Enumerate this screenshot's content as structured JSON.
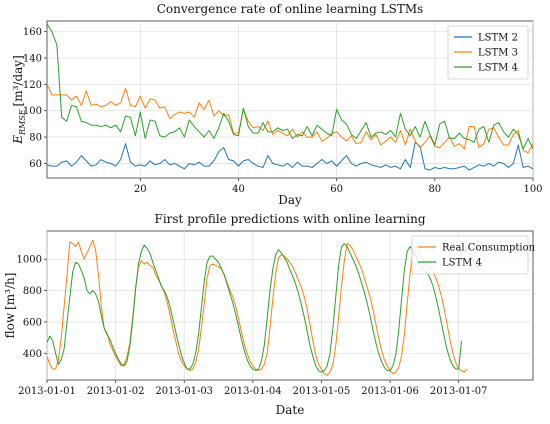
{
  "chart_data": [
    {
      "type": "line",
      "title": "Convergence rate of online learning LSTMs",
      "xlabel": "Day",
      "ylabel": "E_RMSE [m³/day]",
      "ylabel_main": "E",
      "ylabel_sub": "RMSE",
      "ylabel_unit": "[m³/day]",
      "xlim": [
        1,
        100
      ],
      "ylim": [
        49,
        168
      ],
      "xticks": [
        "20",
        "40",
        "60",
        "80",
        "100"
      ],
      "xtick_values": [
        20,
        40,
        60,
        80,
        100
      ],
      "yticks": [
        "60",
        "80",
        "100",
        "120",
        "140",
        "160"
      ],
      "ytick_values": [
        60,
        80,
        100,
        120,
        140,
        160
      ],
      "grid": true,
      "legend_position": "top-right",
      "x_start": 1,
      "series": [
        {
          "name": "LSTM 2",
          "color": "#1f77b4",
          "values": [
            59,
            58,
            58,
            61,
            62,
            58,
            61,
            66,
            62,
            58,
            59,
            63,
            61,
            60,
            58,
            63,
            75,
            61,
            58,
            59,
            58,
            62,
            59,
            60,
            63,
            59,
            60,
            58,
            56,
            60,
            59,
            61,
            58,
            58,
            62,
            69,
            72,
            63,
            62,
            58,
            62,
            63,
            60,
            58,
            57,
            66,
            60,
            59,
            58,
            60,
            57,
            61,
            58,
            58,
            57,
            60,
            63,
            60,
            62,
            58,
            62,
            66,
            60,
            58,
            60,
            61,
            59,
            58,
            57,
            59,
            57,
            58,
            56,
            63,
            57,
            76,
            73,
            56,
            55,
            57,
            56,
            57,
            56,
            56,
            57,
            58,
            55,
            57,
            59,
            58,
            60,
            58,
            61,
            60,
            57,
            60,
            74,
            57,
            58,
            56
          ]
        },
        {
          "name": "LSTM 3",
          "color": "#ff7f0e",
          "values": [
            120,
            112,
            112,
            112,
            112,
            108,
            111,
            104,
            115,
            104,
            105,
            103,
            104,
            107,
            104,
            106,
            117,
            104,
            103,
            111,
            102,
            109,
            108,
            102,
            103,
            94,
            97,
            99,
            98,
            99,
            95,
            106,
            101,
            108,
            96,
            100,
            96,
            97,
            83,
            83,
            101,
            92,
            87,
            88,
            85,
            92,
            82,
            85,
            83,
            81,
            86,
            80,
            84,
            80,
            80,
            84,
            77,
            79,
            83,
            84,
            80,
            77,
            81,
            75,
            76,
            84,
            78,
            82,
            74,
            77,
            80,
            76,
            85,
            74,
            86,
            77,
            72,
            76,
            81,
            73,
            72,
            76,
            80,
            73,
            75,
            71,
            88,
            88,
            72,
            75,
            86,
            87,
            80,
            74,
            74,
            82,
            85,
            70,
            68,
            75
          ]
        },
        {
          "name": "LSTM 4",
          "color": "#2ca02c",
          "values": [
            166,
            160,
            150,
            95,
            92,
            104,
            103,
            92,
            91,
            89,
            89,
            88,
            89,
            87,
            89,
            84,
            96,
            95,
            81,
            99,
            79,
            93,
            92,
            81,
            80,
            83,
            84,
            87,
            80,
            93,
            88,
            84,
            80,
            85,
            79,
            87,
            98,
            92,
            82,
            81,
            102,
            88,
            83,
            83,
            91,
            84,
            84,
            87,
            85,
            86,
            79,
            82,
            81,
            88,
            81,
            89,
            86,
            83,
            81,
            101,
            93,
            90,
            82,
            79,
            85,
            91,
            80,
            83,
            84,
            82,
            85,
            80,
            98,
            86,
            81,
            88,
            80,
            92,
            82,
            74,
            90,
            92,
            79,
            79,
            83,
            79,
            78,
            76,
            86,
            88,
            76,
            89,
            91,
            84,
            80,
            86,
            82,
            71,
            79,
            71
          ]
        }
      ]
    },
    {
      "type": "line",
      "title": "First profile predictions with online learning",
      "xlabel": "Date",
      "ylabel": "flow [m³/h]",
      "ylabel_main": "flow",
      "ylabel_unit": "[m³/h]",
      "xlim": [
        0,
        170
      ],
      "ylim": [
        230,
        1180
      ],
      "xticks": [
        "2013-01-01",
        "2013-01-02",
        "2013-01-03",
        "2013-01-04",
        "2013-01-05",
        "2013-01-06",
        "2013-01-07"
      ],
      "xtick_values": [
        0,
        24,
        48,
        72,
        96,
        120,
        144
      ],
      "yticks": [
        "400",
        "600",
        "800",
        "1000"
      ],
      "ytick_values": [
        400,
        600,
        800,
        1000
      ],
      "grid": true,
      "legend_position": "top-right",
      "x_step": 1,
      "series": [
        {
          "name": "Real Consumption",
          "color": "#ff7f0e",
          "values": [
            380,
            330,
            300,
            300,
            360,
            500,
            700,
            900,
            1110,
            1100,
            1080,
            1110,
            1050,
            1000,
            1040,
            1080,
            1120,
            1060,
            900,
            700,
            560,
            530,
            460,
            420,
            380,
            350,
            320,
            330,
            380,
            470,
            630,
            820,
            950,
            990,
            970,
            980,
            960,
            950,
            900,
            870,
            830,
            790,
            730,
            650,
            560,
            480,
            400,
            350,
            320,
            300,
            290,
            300,
            340,
            420,
            560,
            720,
            880,
            960,
            970,
            960,
            950,
            940,
            900,
            850,
            800,
            760,
            700,
            620,
            540,
            460,
            400,
            350,
            320,
            300,
            290,
            300,
            330,
            400,
            560,
            750,
            910,
            1010,
            1030,
            1020,
            1000,
            980,
            950,
            910,
            860,
            820,
            760,
            680,
            580,
            480,
            390,
            330,
            300,
            270,
            260,
            280,
            330,
            450,
            630,
            830,
            990,
            1100,
            1090,
            1060,
            1020,
            980,
            940,
            880,
            820,
            760,
            680,
            590,
            500,
            420,
            360,
            320,
            290,
            270,
            280,
            310,
            380,
            520,
            720,
            910,
            1050,
            1080,
            1060,
            1020,
            980,
            950,
            940,
            920,
            880,
            830,
            760,
            680,
            580,
            480,
            400,
            340,
            300,
            290,
            280,
            300
          ]
        },
        {
          "name": "LSTM 4",
          "color": "#2ca02c",
          "values": [
            470,
            510,
            480,
            400,
            330,
            360,
            430,
            600,
            760,
            920,
            980,
            970,
            930,
            880,
            800,
            780,
            800,
            780,
            730,
            640,
            560,
            520,
            490,
            440,
            400,
            360,
            330,
            320,
            350,
            450,
            610,
            810,
            970,
            1050,
            1090,
            1070,
            1040,
            980,
            930,
            880,
            830,
            800,
            760,
            700,
            620,
            540,
            460,
            390,
            340,
            300,
            300,
            330,
            400,
            520,
            690,
            860,
            980,
            1020,
            1020,
            1000,
            980,
            940,
            900,
            840,
            780,
            720,
            650,
            570,
            490,
            420,
            360,
            320,
            300,
            290,
            300,
            350,
            450,
            620,
            800,
            940,
            1030,
            1060,
            1040,
            1010,
            980,
            930,
            890,
            840,
            780,
            710,
            630,
            540,
            450,
            380,
            320,
            290,
            280,
            290,
            320,
            400,
            560,
            760,
            960,
            1080,
            1100,
            1080,
            1040,
            1000,
            960,
            910,
            850,
            790,
            720,
            640,
            550,
            470,
            400,
            350,
            310,
            290,
            290,
            320,
            390,
            540,
            740,
            930,
            1050,
            1080,
            1060,
            1020,
            980,
            950,
            930,
            910,
            880,
            830,
            760,
            680,
            590,
            500,
            420,
            360,
            320,
            300,
            300,
            480
          ]
        }
      ]
    }
  ]
}
